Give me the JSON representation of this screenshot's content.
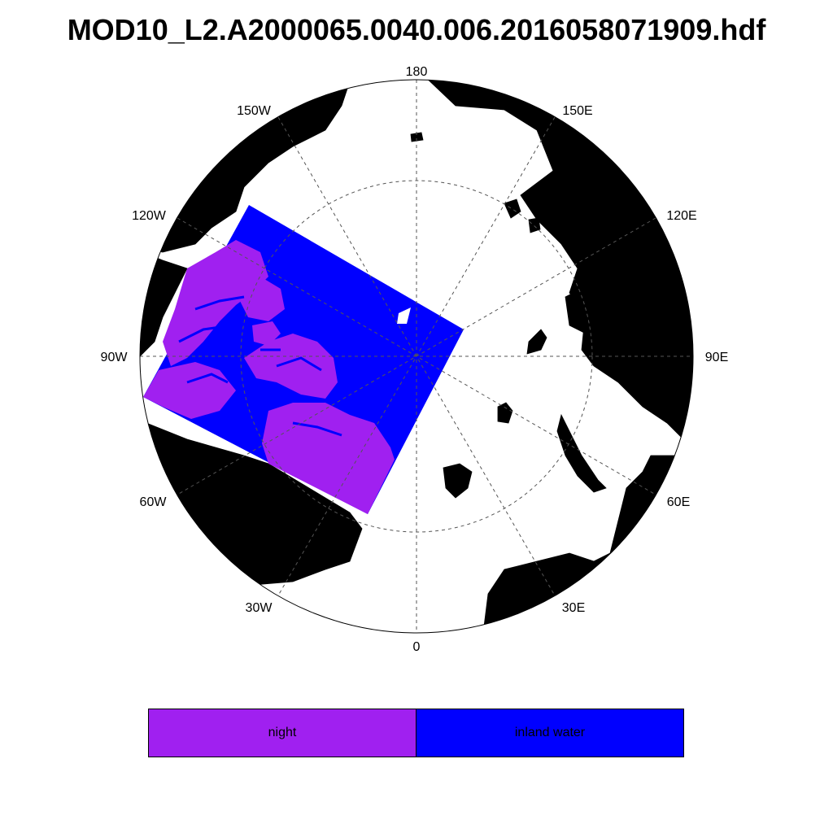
{
  "title": "MOD10_L2.A2000065.0040.006.2016058071909.hdf",
  "map": {
    "projection": "north-polar-stereographic",
    "colors": {
      "land": "#d3d3d3",
      "ocean": "#ffffff",
      "night": "#a020f0",
      "inland_water": "#0000ff",
      "grid": "#555555"
    },
    "longitude_labels": {
      "lon_180": "180",
      "lon_150e": "150E",
      "lon_120e": "120E",
      "lon_90e": "90E",
      "lon_60e": "60E",
      "lon_30e": "30E",
      "lon_0": "0",
      "lon_30w": "30W",
      "lon_60w": "60W",
      "lon_90w": "90W",
      "lon_120w": "120W",
      "lon_150w": "150W"
    }
  },
  "legend": {
    "items": [
      {
        "label": "night",
        "color": "#a020f0"
      },
      {
        "label": "inland water",
        "color": "#0000ff"
      }
    ]
  }
}
